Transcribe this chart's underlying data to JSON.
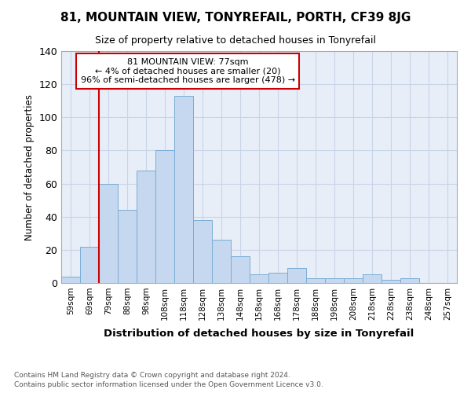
{
  "title": "81, MOUNTAIN VIEW, TONYREFAIL, PORTH, CF39 8JG",
  "subtitle": "Size of property relative to detached houses in Tonyrefail",
  "xlabel": "Distribution of detached houses by size in Tonyrefail",
  "ylabel": "Number of detached properties",
  "bar_labels": [
    "59sqm",
    "69sqm",
    "79sqm",
    "88sqm",
    "98sqm",
    "108sqm",
    "118sqm",
    "128sqm",
    "138sqm",
    "148sqm",
    "158sqm",
    "168sqm",
    "178sqm",
    "188sqm",
    "198sqm",
    "208sqm",
    "218sqm",
    "228sqm",
    "238sqm",
    "248sqm",
    "257sqm"
  ],
  "bar_values": [
    4,
    22,
    60,
    44,
    68,
    80,
    113,
    38,
    26,
    16,
    5,
    6,
    9,
    3,
    3,
    3,
    5,
    2,
    3,
    0,
    0
  ],
  "bar_color": "#c5d8f0",
  "bar_edgecolor": "#7aadd4",
  "annotation_line1": "81 MOUNTAIN VIEW: 77sqm",
  "annotation_line2": "← 4% of detached houses are smaller (20)",
  "annotation_line3": "96% of semi-detached houses are larger (478) →",
  "annotation_box_color": "#ffffff",
  "annotation_box_edgecolor": "#cc0000",
  "red_line_color": "#cc0000",
  "ylim": [
    0,
    140
  ],
  "yticks": [
    0,
    20,
    40,
    60,
    80,
    100,
    120,
    140
  ],
  "footer_line1": "Contains HM Land Registry data © Crown copyright and database right 2024.",
  "footer_line2": "Contains public sector information licensed under the Open Government Licence v3.0.",
  "grid_color": "#c8d4e8",
  "bg_color": "#e8eef8"
}
